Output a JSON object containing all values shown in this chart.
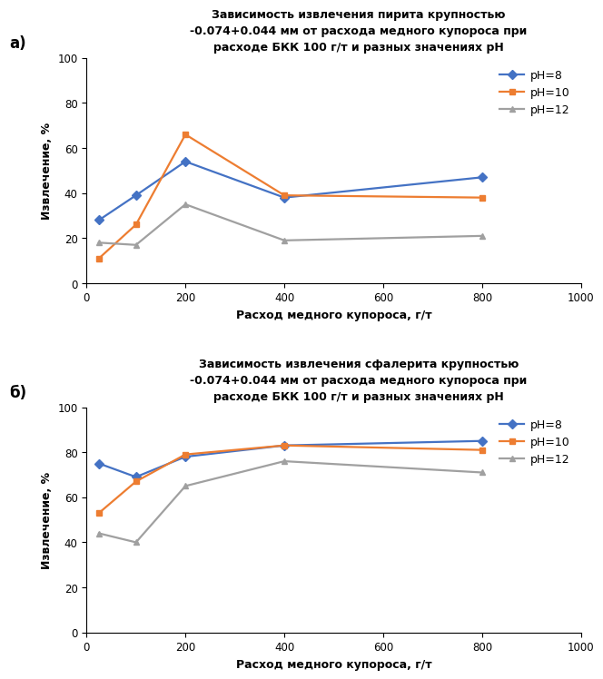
{
  "title_a": "Зависимость извлечения пирита крупностью\n-0.074+0.044 мм от расхода медного купороса при\nрасходе БКК 100 г/т и разных значениях pH",
  "title_b": "Зависимость извлечения сфалерита крупностью\n-0.074+0.044 мм от расхода медного купороса при\nрасходе БКК 100 г/т и разных значениях pH",
  "xlabel": "Расход медного купороса, г/т",
  "ylabel": "Извлечение, %",
  "x_values": [
    25,
    100,
    200,
    400,
    800
  ],
  "pyrite": {
    "pH8": [
      28,
      39,
      54,
      38,
      47
    ],
    "pH10": [
      11,
      26,
      66,
      39,
      38
    ],
    "pH12": [
      18,
      17,
      35,
      19,
      21
    ]
  },
  "sphalerite": {
    "pH8": [
      75,
      69,
      78,
      83,
      85
    ],
    "pH10": [
      53,
      67,
      79,
      83,
      81
    ],
    "pH12": [
      44,
      40,
      65,
      76,
      71
    ]
  },
  "color_pH8": "#4472C4",
  "color_pH10": "#ED7D31",
  "color_pH12": "#A0A0A0",
  "ylim": [
    0,
    100
  ],
  "xlim": [
    0,
    1000
  ],
  "xticks": [
    0,
    200,
    400,
    600,
    800,
    1000
  ],
  "yticks": [
    0,
    20,
    40,
    60,
    80,
    100
  ],
  "legend_labels": [
    "pH=8",
    "pH=10",
    "pH=12"
  ],
  "label_a": "а)",
  "label_b": "б)"
}
